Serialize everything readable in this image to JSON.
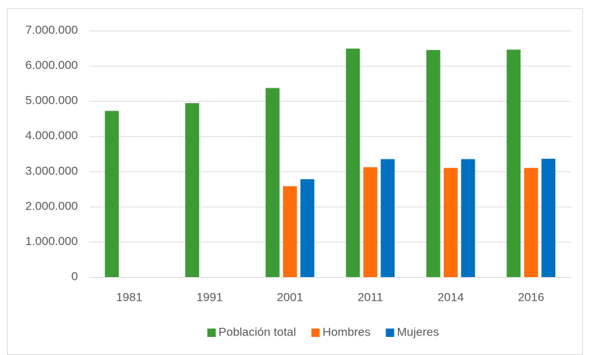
{
  "chart_data": {
    "type": "bar",
    "categories": [
      "1981",
      "1991",
      "2001",
      "2011",
      "2014",
      "2016"
    ],
    "series": [
      {
        "name": "Población total",
        "color": "#3c9b35",
        "values": [
          4720000,
          4940000,
          5370000,
          6490000,
          6450000,
          6460000
        ]
      },
      {
        "name": "Hombres",
        "color": "#ff6d0c",
        "values": [
          null,
          null,
          2580000,
          3120000,
          3100000,
          3100000
        ]
      },
      {
        "name": "Mujeres",
        "color": "#0070c0",
        "values": [
          null,
          null,
          2780000,
          3350000,
          3350000,
          3360000
        ]
      }
    ],
    "ylim": [
      0,
      7000000
    ],
    "yticks": [
      0,
      {
        "value": 1000000,
        "label": "1.000.000"
      },
      {
        "value": 2000000,
        "label": "2.000.000"
      },
      {
        "value": 3000000,
        "label": "3.000.000"
      },
      {
        "value": 4000000,
        "label": "4.000.000"
      },
      {
        "value": 5000000,
        "label": "5.000.000"
      },
      {
        "value": 6000000,
        "label": "6.000.000"
      },
      {
        "value": 7000000,
        "label": "7.000.000"
      }
    ],
    "grid": true,
    "legend": "bottom"
  }
}
